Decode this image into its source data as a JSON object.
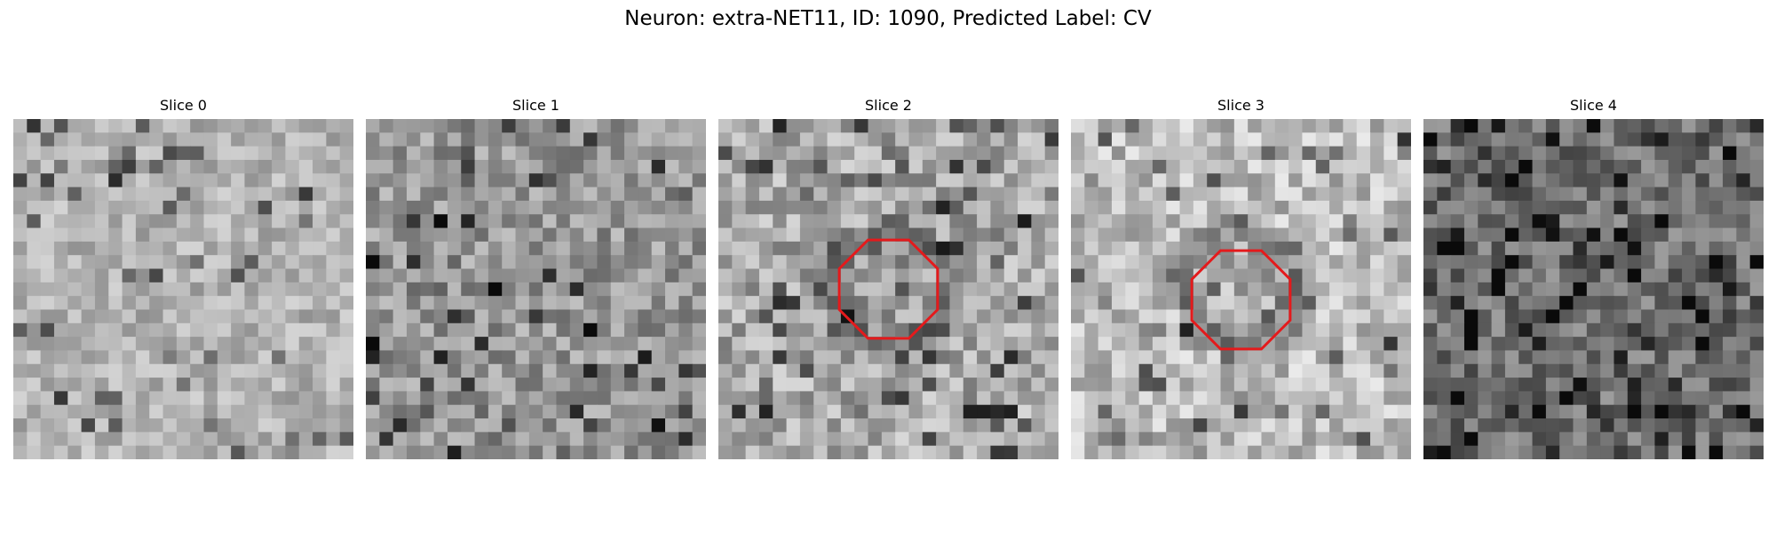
{
  "figure": {
    "title": "Neuron: extra-NET11, ID: 1090, Predicted Label: CV"
  },
  "panels": [
    {
      "title": "Slice 0",
      "outlined": false
    },
    {
      "title": "Slice 1",
      "outlined": false
    },
    {
      "title": "Slice 2",
      "outlined": true
    },
    {
      "title": "Slice 3",
      "outlined": true
    },
    {
      "title": "Slice 4",
      "outlined": false
    }
  ],
  "colors": {
    "outline": "#e41a1c",
    "background": "#ffffff"
  },
  "image": {
    "colormap": "grayscale",
    "grid_size": 25
  }
}
